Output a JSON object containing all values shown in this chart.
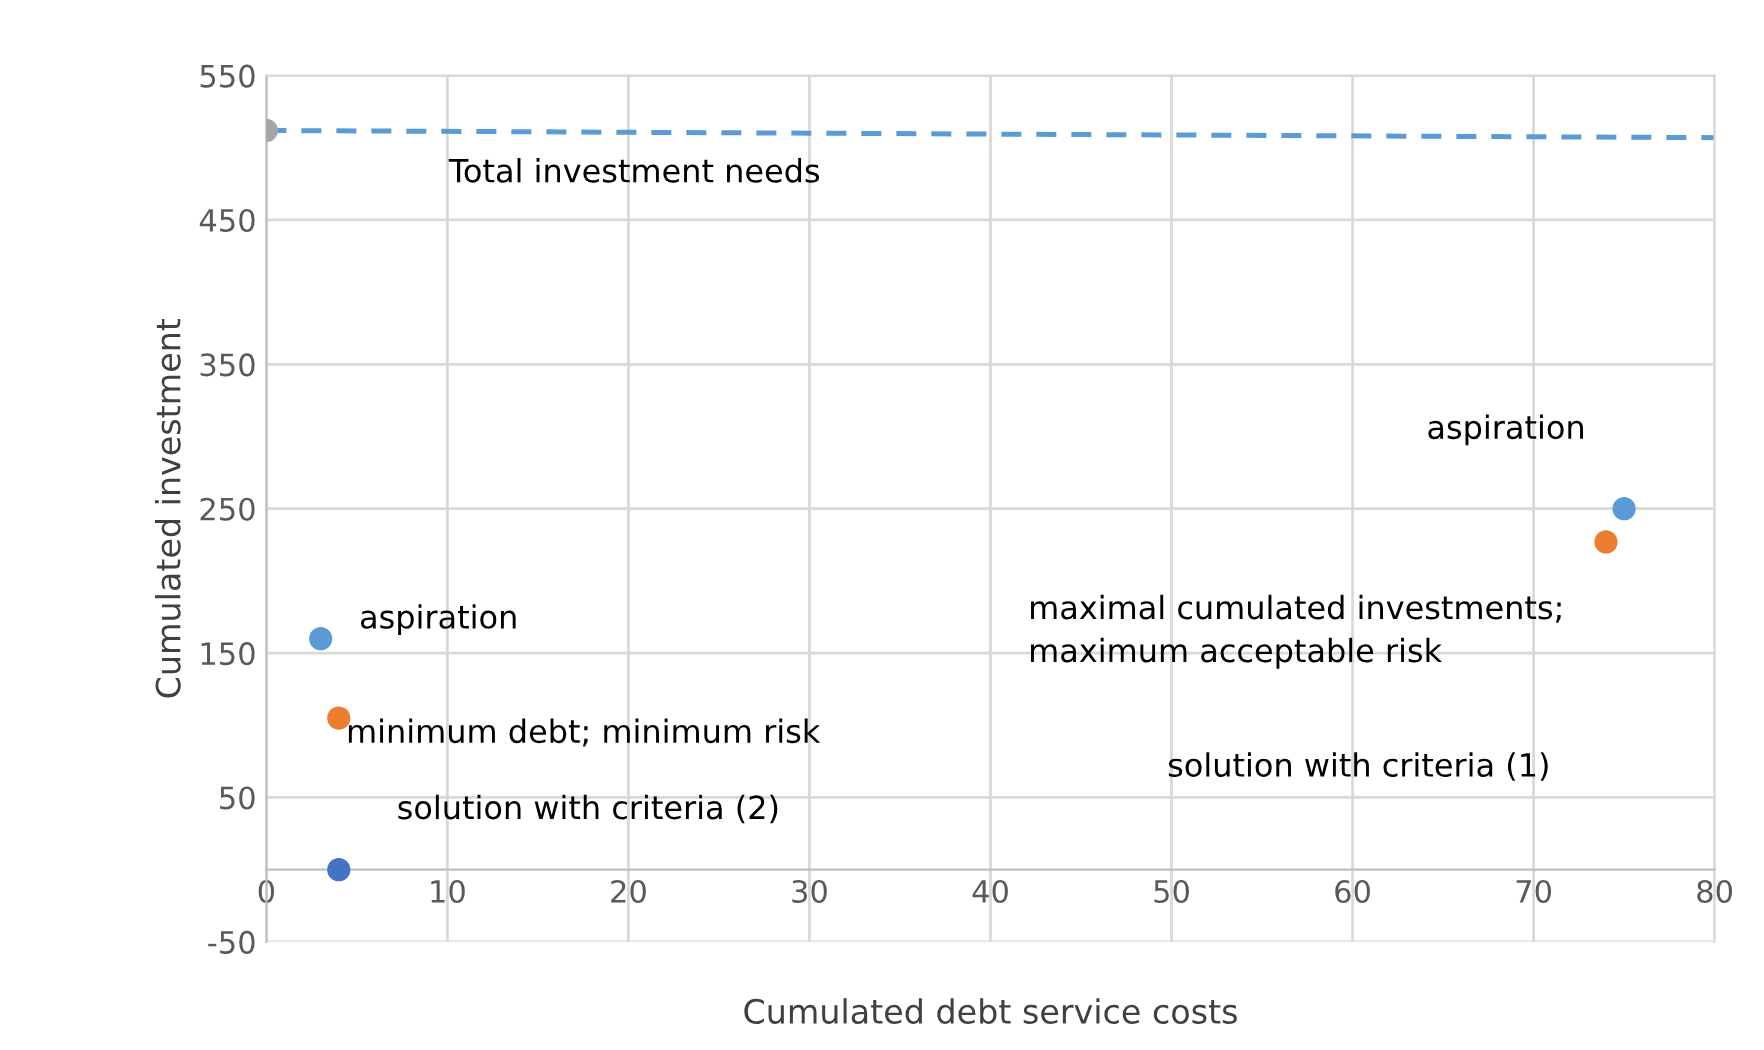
{
  "chart_data": {
    "type": "scatter",
    "xlabel": "Cumulated debt service costs",
    "ylabel": "Cumulated investment",
    "xlim": [
      0,
      80
    ],
    "xticks": [
      0,
      10,
      20,
      30,
      40,
      50,
      60,
      70,
      80
    ],
    "ylim": [
      -50,
      550
    ],
    "yticks": [
      -50,
      50,
      150,
      250,
      350,
      450,
      550
    ],
    "grid": true,
    "marker": "circle",
    "series": [
      {
        "type": "line",
        "color": "#5b9bd5",
        "x": [
          0,
          80
        ],
        "values": [
          512,
          507
        ],
        "line_style": "dashed",
        "marker": "none"
      },
      {
        "color": "#a5a5a5",
        "x": [
          0
        ],
        "values": [
          512
        ]
      },
      {
        "color": "#5b9bd5",
        "x": [
          3,
          75
        ],
        "values": [
          160,
          250
        ]
      },
      {
        "color": "#ed7d31",
        "x": [
          4,
          74
        ],
        "values": [
          105,
          227
        ]
      },
      {
        "color": "#4472c4",
        "x": [
          4
        ],
        "values": [
          0
        ]
      }
    ],
    "annotations": [
      "Total investment needs",
      "aspiration",
      "minimum debt; minimum risk",
      "solution with criteria (2)",
      "aspiration",
      "maximal cumulated investments;\nmaximum acceptable risk",
      "solution with criteria (1)"
    ]
  }
}
